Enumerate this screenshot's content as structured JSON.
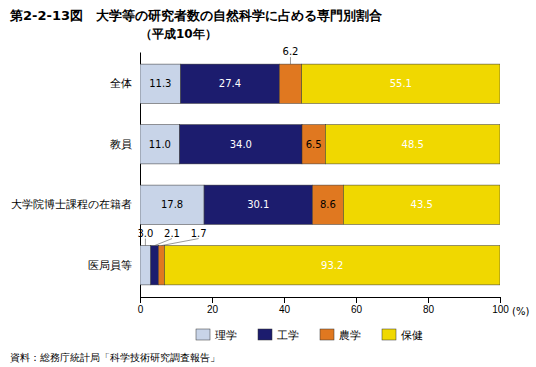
{
  "chart_data": {
    "type": "bar",
    "orientation": "horizontal",
    "stacked": true,
    "data_labels": true,
    "legend": "bottom",
    "title": "第2-2-13図　大学等の研究者数の自然科学に占める専門別割合",
    "subtitle": "（平成10年）",
    "x_label": "(%)",
    "annotations": [
      "資料：総務庁統計局「科学技術研究調査報告」"
    ],
    "categories": [
      "全体",
      "教員",
      "大学院博士課程の在籍者",
      "医局員等"
    ],
    "series": [
      {
        "name": "理学",
        "color": "#c8d4e8",
        "values": [
          11.3,
          11.0,
          17.8,
          3.0
        ],
        "value_labels": [
          "11.3",
          "11.0",
          "17.8",
          "3.0"
        ]
      },
      {
        "name": "工学",
        "color": "#1c1c6e",
        "values": [
          27.4,
          34.0,
          30.1,
          2.1
        ],
        "value_labels": [
          "27.4",
          "34.0",
          "30.1",
          "2.1"
        ]
      },
      {
        "name": "農学",
        "color": "#e07820",
        "values": [
          6.2,
          6.5,
          8.6,
          1.7
        ],
        "value_labels": [
          "6.2",
          "6.5",
          "8.6",
          "1.7"
        ]
      },
      {
        "name": "保健",
        "color": "#f0d800",
        "values": [
          55.1,
          48.5,
          43.5,
          93.2
        ],
        "value_labels": [
          "55.1",
          "48.5",
          "43.5",
          "93.2"
        ]
      }
    ],
    "xlim": [
      0,
      100
    ],
    "xticks": [
      0,
      20,
      40,
      60,
      80,
      100
    ]
  }
}
